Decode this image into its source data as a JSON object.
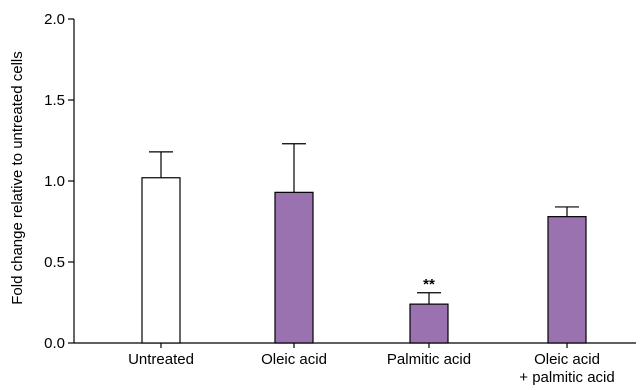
{
  "chart_data": {
    "type": "bar",
    "ylabel": "Fold change relative to untreated cells",
    "xlabel": "",
    "ylim": [
      0,
      2.0
    ],
    "yticks": [
      "0.0",
      "0.5",
      "1.0",
      "1.5",
      "2.0"
    ],
    "grid": false,
    "categories": [
      [
        "Untreated"
      ],
      [
        "Oleic acid"
      ],
      [
        "Palmitic acid"
      ],
      [
        "Oleic acid",
        "+ palmitic acid"
      ]
    ],
    "values": [
      1.02,
      0.93,
      0.24,
      0.78
    ],
    "errors": [
      0.16,
      0.3,
      0.07,
      0.06
    ],
    "annotations": [
      "",
      "",
      "**",
      ""
    ],
    "colors": [
      "#ffffff",
      "#9b72b0",
      "#9b72b0",
      "#9b72b0"
    ]
  }
}
